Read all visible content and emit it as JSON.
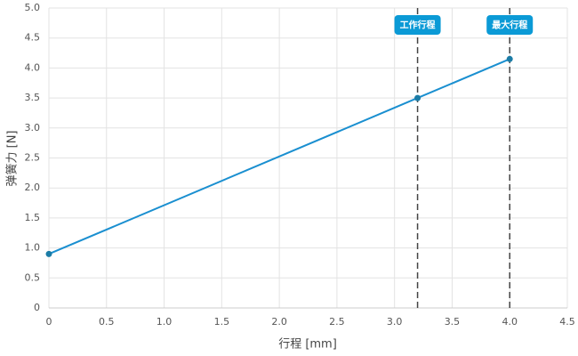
{
  "chart_data": {
    "type": "line",
    "x": [
      0,
      3.2,
      4.0
    ],
    "values": [
      0.9,
      3.5,
      4.15
    ],
    "color": "#1a8fd0",
    "point_color": "#1b7ca6",
    "xlabel": "行程 [mm]",
    "ylabel": "弹簧力 [N]",
    "xlim": [
      0,
      4.5
    ],
    "ylim": [
      0,
      5
    ],
    "xticks": [
      0,
      0.5,
      {
        "value": 1,
        "label": "1.0"
      },
      1.5,
      {
        "value": 2,
        "label": "2.0"
      },
      2.5,
      {
        "value": 3,
        "label": "3.0"
      },
      3.5,
      {
        "value": 4,
        "label": "4.0"
      },
      4.5
    ],
    "yticks": [
      0,
      0.5,
      {
        "value": 1,
        "label": "1.0"
      },
      1.5,
      {
        "value": 2,
        "label": "2.0"
      },
      2.5,
      {
        "value": 3,
        "label": "3.0"
      },
      3.5,
      {
        "value": 4,
        "label": "4.0"
      },
      4.5,
      {
        "value": 5,
        "label": "5.0"
      }
    ],
    "grid": true,
    "annotations": [
      {
        "x": 3.2,
        "label": "工作行程"
      },
      {
        "x": 4.0,
        "label": "最大行程"
      }
    ],
    "annotation_color": "#0b9ad6"
  }
}
